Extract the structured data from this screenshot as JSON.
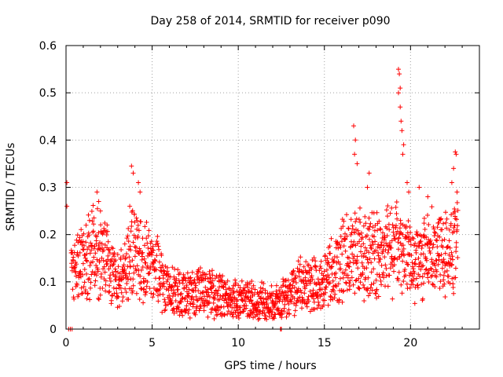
{
  "chart_data": {
    "type": "scatter",
    "title": "Day 258 of 2014, SRMTID for receiver p090",
    "xlabel": "GPS time / hours",
    "ylabel": "SRMTID / TECUs",
    "xlim": [
      0,
      24
    ],
    "ylim": [
      0,
      0.6
    ],
    "xticks": [
      0,
      5,
      10,
      15,
      20
    ],
    "yticks": [
      0,
      0.1,
      0.2,
      0.3,
      0.4,
      0.5,
      0.6
    ],
    "xtick_labels": [
      "0",
      "5",
      "10",
      "15",
      "20"
    ],
    "ytick_labels": [
      "0",
      "0.1",
      "0.2",
      "0.3",
      "0.4",
      "0.5",
      "0.6"
    ],
    "grid": true,
    "marker": "+",
    "marker_color": "#ff0000",
    "trend": [
      [
        0.3,
        0.12
      ],
      [
        1.0,
        0.14
      ],
      [
        1.8,
        0.17
      ],
      [
        2.5,
        0.13
      ],
      [
        3.1,
        0.09
      ],
      [
        3.9,
        0.17
      ],
      [
        4.5,
        0.14
      ],
      [
        5.2,
        0.13
      ],
      [
        6.0,
        0.08
      ],
      [
        7.0,
        0.075
      ],
      [
        8.0,
        0.08
      ],
      [
        9.0,
        0.07
      ],
      [
        10.0,
        0.06
      ],
      [
        11.0,
        0.06
      ],
      [
        12.0,
        0.05
      ],
      [
        12.8,
        0.07
      ],
      [
        13.5,
        0.09
      ],
      [
        14.5,
        0.09
      ],
      [
        15.2,
        0.11
      ],
      [
        16.0,
        0.14
      ],
      [
        16.8,
        0.17
      ],
      [
        17.6,
        0.15
      ],
      [
        18.5,
        0.16
      ],
      [
        19.3,
        0.17
      ],
      [
        20.0,
        0.14
      ],
      [
        21.0,
        0.16
      ],
      [
        22.0,
        0.16
      ],
      [
        22.7,
        0.18
      ]
    ],
    "spikes": [
      [
        0.05,
        0.31
      ],
      [
        0.05,
        0.26
      ],
      [
        1.8,
        0.29
      ],
      [
        1.9,
        0.27
      ],
      [
        2.0,
        0.25
      ],
      [
        3.8,
        0.345
      ],
      [
        3.9,
        0.33
      ],
      [
        4.2,
        0.31
      ],
      [
        4.3,
        0.29
      ],
      [
        3.7,
        0.26
      ],
      [
        16.7,
        0.43
      ],
      [
        16.8,
        0.4
      ],
      [
        16.75,
        0.37
      ],
      [
        16.9,
        0.35
      ],
      [
        17.6,
        0.33
      ],
      [
        17.5,
        0.3
      ],
      [
        19.3,
        0.55
      ],
      [
        19.35,
        0.54
      ],
      [
        19.4,
        0.51
      ],
      [
        19.3,
        0.5
      ],
      [
        19.4,
        0.47
      ],
      [
        19.45,
        0.44
      ],
      [
        19.5,
        0.42
      ],
      [
        19.6,
        0.39
      ],
      [
        19.55,
        0.37
      ],
      [
        19.8,
        0.31
      ],
      [
        19.9,
        0.29
      ],
      [
        20.5,
        0.3
      ],
      [
        21.0,
        0.28
      ],
      [
        22.6,
        0.375
      ],
      [
        22.65,
        0.37
      ],
      [
        22.5,
        0.34
      ],
      [
        22.4,
        0.31
      ],
      [
        22.7,
        0.29
      ]
    ],
    "zeros": [
      [
        0.15,
        0.0
      ],
      [
        0.25,
        0.0
      ],
      [
        0.35,
        0.0
      ],
      [
        12.45,
        0.0
      ],
      [
        12.5,
        0.0
      ]
    ]
  }
}
